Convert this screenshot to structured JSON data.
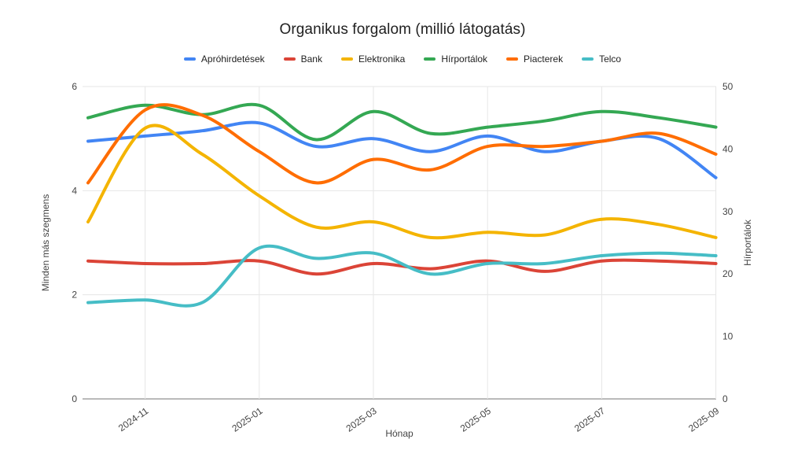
{
  "chart_data": {
    "type": "line",
    "title": "Organikus forgalom (millió látogatás)",
    "xlabel": "Hónap",
    "x": [
      "2024-10",
      "2024-11",
      "2024-12",
      "2025-01",
      "2025-02",
      "2025-03",
      "2025-04",
      "2025-05",
      "2025-06",
      "2025-07",
      "2025-08",
      "2025-09"
    ],
    "x_tick_labels": [
      "2024-11",
      "2025-01",
      "2025-03",
      "2025-05",
      "2025-07",
      "2025-09"
    ],
    "y_left": {
      "title": "Minden más szegmens",
      "min": 0,
      "max": 6,
      "ticks": [
        0,
        2,
        4,
        6
      ]
    },
    "y_right": {
      "title": "Hírportálok",
      "min": 0,
      "max": 50,
      "ticks": [
        0,
        10,
        20,
        30,
        40,
        50
      ]
    },
    "grid": true,
    "legend_position": "top",
    "curve": "smooth",
    "style": {
      "grid_color": "#e6e6e6",
      "axis_line_color": "#757575",
      "tick_text_color": "#444444",
      "axis_title_color": "#444444",
      "title_color": "#212121"
    },
    "series": [
      {
        "name": "Apróhirdetések",
        "color": "#4285F4",
        "axis": "left",
        "values": [
          4.95,
          5.05,
          5.15,
          5.3,
          4.85,
          5.0,
          4.75,
          5.05,
          4.75,
          4.95,
          5.0,
          4.25
        ]
      },
      {
        "name": "Bank",
        "color": "#DB4437",
        "axis": "left",
        "values": [
          2.65,
          2.6,
          2.6,
          2.65,
          2.4,
          2.6,
          2.5,
          2.65,
          2.45,
          2.65,
          2.65,
          2.6
        ]
      },
      {
        "name": "Elektronika",
        "color": "#F4B400",
        "axis": "left",
        "values": [
          3.4,
          5.2,
          4.7,
          3.9,
          3.3,
          3.4,
          3.1,
          3.2,
          3.15,
          3.45,
          3.35,
          3.1
        ]
      },
      {
        "name": "Hírportálok",
        "color": "#34A853",
        "axis": "right",
        "values": [
          45,
          47,
          45.5,
          47,
          41.5,
          46,
          42.5,
          43.5,
          44.5,
          46,
          45,
          43.5
        ]
      },
      {
        "name": "Piacterek",
        "color": "#FF6D01",
        "axis": "left",
        "values": [
          4.15,
          5.55,
          5.45,
          4.75,
          4.15,
          4.6,
          4.4,
          4.85,
          4.85,
          4.95,
          5.1,
          4.7
        ]
      },
      {
        "name": "Telco",
        "color": "#46BDC6",
        "axis": "left",
        "values": [
          1.85,
          1.9,
          1.85,
          2.9,
          2.7,
          2.8,
          2.4,
          2.6,
          2.6,
          2.75,
          2.8,
          2.75
        ]
      }
    ]
  }
}
